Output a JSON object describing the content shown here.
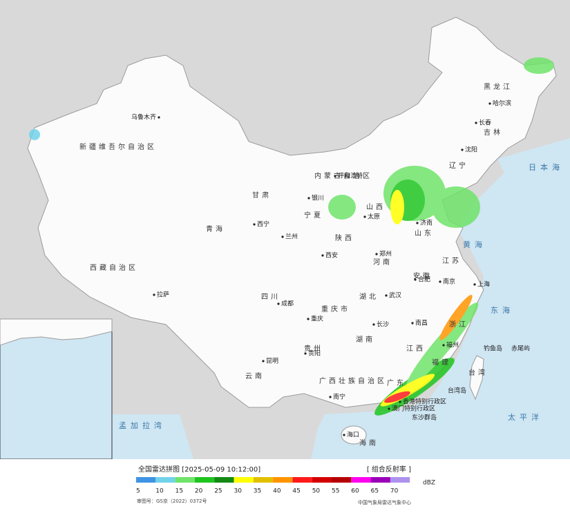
{
  "map": {
    "provinces": [
      "新疆维吾尔自治区",
      "西藏自治区",
      "青海",
      "甘肃",
      "内蒙古自治区",
      "黑龙江",
      "吉林",
      "辽宁",
      "山西",
      "宁夏",
      "陕西",
      "河南",
      "山东",
      "江苏",
      "安徽",
      "湖北",
      "四川",
      "重庆市",
      "贵州",
      "湖南",
      "江西",
      "浙江",
      "福建",
      "云南",
      "广西壮族自治区",
      "广东",
      "海南",
      "台湾"
    ],
    "cities": [
      "乌鲁木齐",
      "哈尔滨",
      "长春",
      "沈阳",
      "呼和浩特",
      "银川",
      "太原",
      "济南",
      "西宁",
      "兰州",
      "西安",
      "郑州",
      "合肥",
      "南京",
      "上海",
      "武汉",
      "成都",
      "重庆",
      "长沙",
      "南昌",
      "贵阳",
      "昆明",
      "南宁",
      "福州",
      "海口",
      "拉萨",
      "香港特别行政区",
      "澳门特别行政区"
    ],
    "places": [
      "台湾岛",
      "东沙群岛",
      "钓鱼岛",
      "赤尾屿"
    ],
    "seas": [
      "日本海",
      "黄海",
      "东海",
      "太平洋",
      "孟加拉湾"
    ]
  },
  "legend": {
    "title": "全国雷达拼图 [2025-05-09 10:12:00]",
    "product": "[ 组合反射率 ]",
    "unit": "dBZ",
    "levels": [
      {
        "value": 5,
        "color": "#3f94e4"
      },
      {
        "value": 10,
        "color": "#71d2ea"
      },
      {
        "value": 15,
        "color": "#6fe36a"
      },
      {
        "value": 20,
        "color": "#1fc51f"
      },
      {
        "value": 25,
        "color": "#138a13"
      },
      {
        "value": 30,
        "color": "#ffff00"
      },
      {
        "value": 35,
        "color": "#e2c000"
      },
      {
        "value": 40,
        "color": "#ff9400"
      },
      {
        "value": 45,
        "color": "#ff1a1a"
      },
      {
        "value": 50,
        "color": "#d40000"
      },
      {
        "value": 55,
        "color": "#b50000"
      },
      {
        "value": 60,
        "color": "#ff00f0"
      },
      {
        "value": 65,
        "color": "#9a00b8"
      },
      {
        "value": 70,
        "color": "#ae92ee"
      }
    ]
  },
  "footer": {
    "approval": "审图号：GS京（2022）0372号",
    "source": "中国气象局雷达气象中心"
  }
}
